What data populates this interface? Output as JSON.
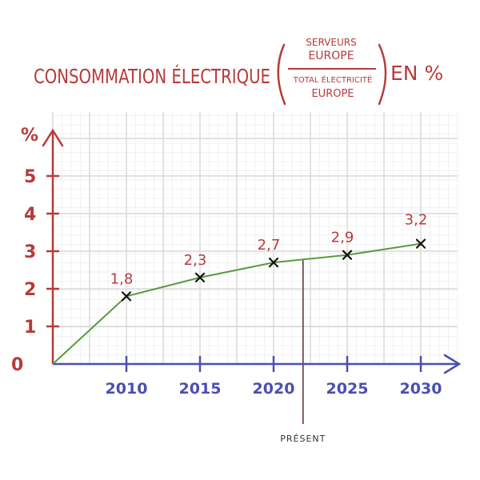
{
  "title": {
    "prefix": "CONSOMMATION ÉLECTRIQUE",
    "fraction_top_1": "SERVEURS",
    "fraction_top_2": "EUROPE",
    "fraction_bottom_1": "TOTAL ÉLECTRICITÉ",
    "fraction_bottom_2": "EUROPE",
    "suffix": "EN %"
  },
  "colors": {
    "title": "#b83a3a",
    "y_axis": "#b83a3a",
    "x_axis": "#4a4fb0",
    "line": "#5a9a3e",
    "grid": "#d9d9d9",
    "present_line": "#5a2a2a"
  },
  "chart_data": {
    "type": "line",
    "x": [
      2005,
      2010,
      2015,
      2020,
      2025,
      2030
    ],
    "series": [
      {
        "values": [
          0,
          1.8,
          2.3,
          2.7,
          2.9,
          3.2
        ]
      }
    ],
    "data_labels": [
      "1,8",
      "2,3",
      "2,7",
      "2,9",
      "3,2"
    ],
    "xticks": [
      "2010",
      "2015",
      "2020",
      "2025",
      "2030"
    ],
    "yticks": [
      "0",
      "1",
      "2",
      "3",
      "4",
      "5"
    ],
    "ylabel": "%",
    "xlim": [
      2005,
      2030
    ],
    "ylim": [
      0,
      5
    ],
    "grid": true,
    "annotation": {
      "label": "PRÉSENT",
      "x": 2022,
      "y": 2.8
    }
  }
}
